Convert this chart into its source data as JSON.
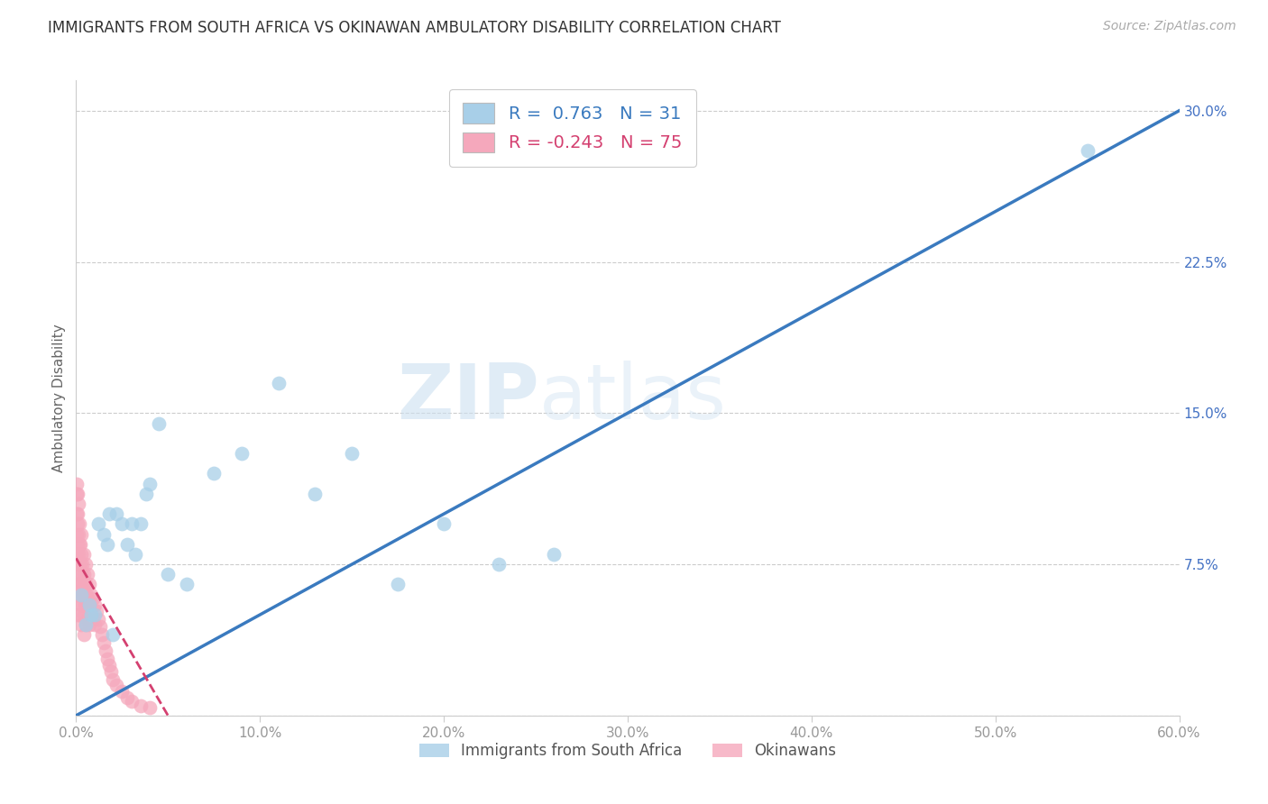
{
  "title": "IMMIGRANTS FROM SOUTH AFRICA VS OKINAWAN AMBULATORY DISABILITY CORRELATION CHART",
  "source": "Source: ZipAtlas.com",
  "ylabel": "Ambulatory Disability",
  "watermark_zip": "ZIP",
  "watermark_atlas": "atlas",
  "xlim": [
    0.0,
    0.6
  ],
  "ylim": [
    0.0,
    0.315
  ],
  "xtick_vals": [
    0.0,
    0.1,
    0.2,
    0.3,
    0.4,
    0.5,
    0.6
  ],
  "xtick_labels": [
    "0.0%",
    "10.0%",
    "20.0%",
    "30.0%",
    "40.0%",
    "50.0%",
    "60.0%"
  ],
  "ytick_vals": [
    0.0,
    0.075,
    0.15,
    0.225,
    0.3
  ],
  "ytick_labels": [
    "",
    "7.5%",
    "15.0%",
    "22.5%",
    "30.0%"
  ],
  "legend_blue_r": "0.763",
  "legend_blue_n": "31",
  "legend_pink_r": "-0.243",
  "legend_pink_n": "75",
  "legend_label_blue": "Immigrants from South Africa",
  "legend_label_pink": "Okinawans",
  "blue_color": "#a8cfe8",
  "pink_color": "#f5a8bc",
  "line_blue_color": "#3a7abf",
  "line_pink_color": "#d44070",
  "blue_x": [
    0.003,
    0.005,
    0.007,
    0.008,
    0.01,
    0.012,
    0.015,
    0.017,
    0.018,
    0.02,
    0.022,
    0.025,
    0.028,
    0.03,
    0.032,
    0.035,
    0.038,
    0.04,
    0.045,
    0.05,
    0.06,
    0.075,
    0.09,
    0.11,
    0.13,
    0.15,
    0.175,
    0.2,
    0.23,
    0.26,
    0.55
  ],
  "blue_y": [
    0.06,
    0.045,
    0.055,
    0.05,
    0.05,
    0.095,
    0.09,
    0.085,
    0.1,
    0.04,
    0.1,
    0.095,
    0.085,
    0.095,
    0.08,
    0.095,
    0.11,
    0.115,
    0.145,
    0.07,
    0.065,
    0.12,
    0.13,
    0.165,
    0.11,
    0.13,
    0.065,
    0.095,
    0.075,
    0.08,
    0.28
  ],
  "pink_x": [
    0.0005,
    0.0005,
    0.0005,
    0.0005,
    0.0005,
    0.001,
    0.001,
    0.001,
    0.001,
    0.001,
    0.001,
    0.001,
    0.001,
    0.0015,
    0.0015,
    0.0015,
    0.0015,
    0.002,
    0.002,
    0.002,
    0.002,
    0.002,
    0.002,
    0.0025,
    0.0025,
    0.0025,
    0.003,
    0.003,
    0.003,
    0.003,
    0.003,
    0.003,
    0.0035,
    0.0035,
    0.0035,
    0.004,
    0.004,
    0.004,
    0.004,
    0.004,
    0.0045,
    0.0045,
    0.005,
    0.005,
    0.005,
    0.005,
    0.0055,
    0.006,
    0.006,
    0.006,
    0.007,
    0.007,
    0.007,
    0.008,
    0.008,
    0.009,
    0.009,
    0.01,
    0.01,
    0.011,
    0.012,
    0.013,
    0.014,
    0.015,
    0.016,
    0.017,
    0.018,
    0.019,
    0.02,
    0.022,
    0.025,
    0.028,
    0.03,
    0.035,
    0.04
  ],
  "pink_y": [
    0.115,
    0.11,
    0.1,
    0.09,
    0.08,
    0.11,
    0.1,
    0.095,
    0.085,
    0.075,
    0.065,
    0.06,
    0.05,
    0.105,
    0.09,
    0.08,
    0.065,
    0.095,
    0.085,
    0.075,
    0.07,
    0.06,
    0.05,
    0.085,
    0.075,
    0.06,
    0.09,
    0.08,
    0.07,
    0.062,
    0.055,
    0.045,
    0.075,
    0.065,
    0.055,
    0.08,
    0.07,
    0.06,
    0.05,
    0.04,
    0.065,
    0.055,
    0.075,
    0.065,
    0.055,
    0.045,
    0.06,
    0.07,
    0.058,
    0.048,
    0.065,
    0.055,
    0.045,
    0.06,
    0.05,
    0.058,
    0.048,
    0.055,
    0.045,
    0.052,
    0.048,
    0.044,
    0.04,
    0.036,
    0.032,
    0.028,
    0.025,
    0.022,
    0.018,
    0.015,
    0.012,
    0.009,
    0.007,
    0.005,
    0.004
  ],
  "background_color": "#ffffff",
  "grid_color": "#cccccc",
  "title_color": "#333333",
  "axis_label_color": "#666666",
  "ytick_color": "#4472c4",
  "xtick_color": "#999999"
}
